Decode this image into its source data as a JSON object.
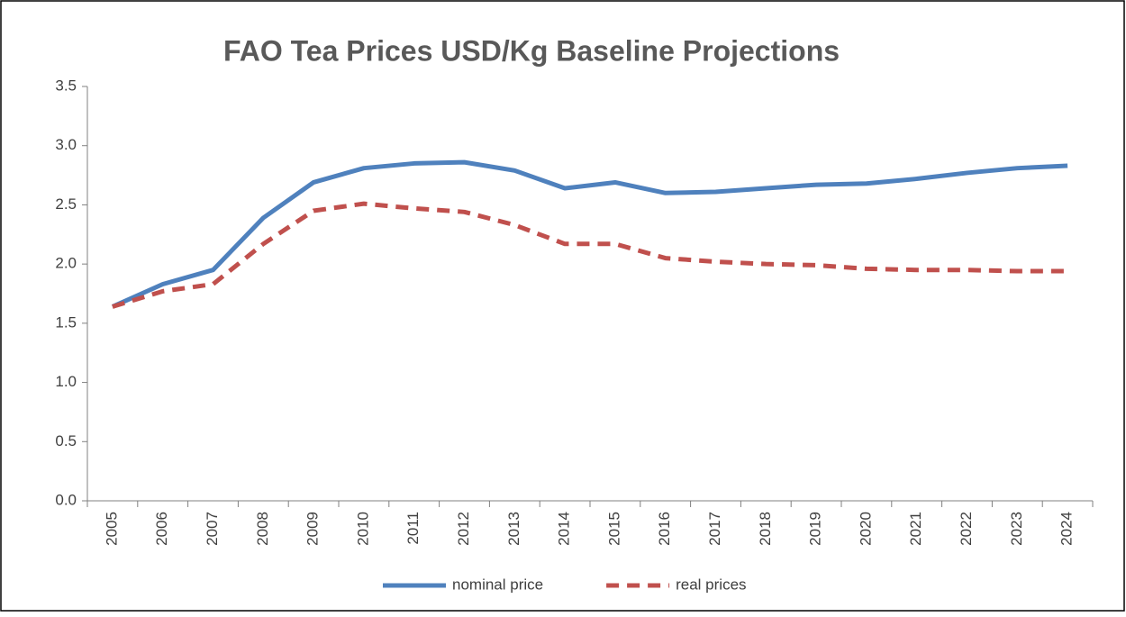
{
  "chart_data": {
    "type": "line",
    "title": "FAO Tea Prices USD/Kg Baseline Projections",
    "categories": [
      "2005",
      "2006",
      "2007",
      "2008",
      "2009",
      "2010",
      "2011",
      "2012",
      "2013",
      "2014",
      "2015",
      "2016",
      "2017",
      "2018",
      "2019",
      "2020",
      "2021",
      "2022",
      "2023",
      "2024"
    ],
    "series": [
      {
        "name": "nominal price",
        "color": "#4f81bd",
        "style": "solid",
        "values": [
          1.64,
          1.83,
          1.95,
          2.39,
          2.69,
          2.81,
          2.85,
          2.86,
          2.79,
          2.64,
          2.69,
          2.6,
          2.61,
          2.64,
          2.67,
          2.68,
          2.72,
          2.77,
          2.81,
          2.83
        ]
      },
      {
        "name": "real prices",
        "color": "#c0504d",
        "style": "dashed",
        "values": [
          1.64,
          1.77,
          1.83,
          2.17,
          2.45,
          2.51,
          2.47,
          2.44,
          2.33,
          2.17,
          2.17,
          2.05,
          2.02,
          2.0,
          1.99,
          1.96,
          1.95,
          1.95,
          1.94,
          1.94
        ]
      }
    ],
    "ylim": [
      0,
      3.5
    ],
    "yticks": [
      {
        "value": 0,
        "label": "0.0"
      },
      0.5,
      {
        "value": 1,
        "label": "1.0"
      },
      1.5,
      {
        "value": 2,
        "label": "2.0"
      },
      2.5,
      {
        "value": 3,
        "label": "3.0"
      },
      3.5
    ],
    "grid": false,
    "legend": "bottom"
  }
}
